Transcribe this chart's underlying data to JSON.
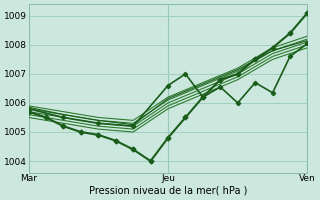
{
  "title": "",
  "xlabel": "Pression niveau de la mer( hPa )",
  "bg_color": "#cce8de",
  "grid_color": "#99ccbb",
  "line_color1": "#1a5c1a",
  "line_color2": "#2d7a2d",
  "ylim": [
    1003.6,
    1009.4
  ],
  "xlim": [
    0,
    48
  ],
  "xticks": [
    0,
    24,
    48
  ],
  "xticklabels": [
    "Mar",
    "Jeu",
    "Ven"
  ],
  "yticks": [
    1004,
    1005,
    1006,
    1007,
    1008,
    1009
  ],
  "lines": [
    {
      "x": [
        0,
        3,
        6,
        9,
        12,
        15,
        18,
        21,
        24,
        27,
        30,
        33,
        36,
        39,
        42,
        45,
        48
      ],
      "y": [
        1005.7,
        1005.5,
        1005.2,
        1005.0,
        1004.9,
        1004.7,
        1004.4,
        1004.0,
        1004.8,
        1005.5,
        1006.2,
        1006.8,
        1007.0,
        1007.5,
        1007.9,
        1008.4,
        1009.1
      ],
      "lw": 1.5,
      "marker": "D",
      "ms": 2.5,
      "color": "#1a5c1a"
    },
    {
      "x": [
        0,
        6,
        12,
        18,
        24,
        30,
        36,
        42,
        48
      ],
      "y": [
        1005.9,
        1005.7,
        1005.5,
        1005.4,
        1006.2,
        1006.7,
        1007.2,
        1007.9,
        1008.3
      ],
      "lw": 0.8,
      "marker": null,
      "ms": 0,
      "color": "#2d7a2d"
    },
    {
      "x": [
        0,
        6,
        12,
        18,
        24,
        30,
        36,
        42,
        48
      ],
      "y": [
        1005.8,
        1005.6,
        1005.4,
        1005.3,
        1006.1,
        1006.6,
        1007.1,
        1007.8,
        1008.2
      ],
      "lw": 0.8,
      "marker": null,
      "ms": 0,
      "color": "#2d7a2d"
    },
    {
      "x": [
        0,
        6,
        12,
        18,
        24,
        30,
        36,
        42,
        48
      ],
      "y": [
        1005.7,
        1005.5,
        1005.3,
        1005.2,
        1006.0,
        1006.5,
        1007.0,
        1007.7,
        1008.1
      ],
      "lw": 0.8,
      "marker": null,
      "ms": 0,
      "color": "#2d7a2d"
    },
    {
      "x": [
        0,
        6,
        12,
        18,
        24,
        30,
        36,
        42,
        48
      ],
      "y": [
        1005.6,
        1005.4,
        1005.2,
        1005.1,
        1005.9,
        1006.4,
        1006.9,
        1007.6,
        1008.0
      ],
      "lw": 0.8,
      "marker": null,
      "ms": 0,
      "color": "#2d7a2d"
    },
    {
      "x": [
        0,
        6,
        12,
        18,
        24,
        30,
        36,
        42,
        48
      ],
      "y": [
        1005.5,
        1005.3,
        1005.1,
        1005.0,
        1005.8,
        1006.3,
        1006.8,
        1007.5,
        1007.9
      ],
      "lw": 0.8,
      "marker": null,
      "ms": 0,
      "color": "#2d7a2d"
    },
    {
      "x": [
        0,
        6,
        12,
        18,
        24,
        27,
        30,
        33,
        36,
        39,
        42,
        45,
        48
      ],
      "y": [
        1005.8,
        1005.5,
        1005.3,
        1005.2,
        1006.6,
        1007.0,
        1006.2,
        1006.55,
        1006.0,
        1006.7,
        1006.35,
        1007.6,
        1008.05
      ],
      "lw": 1.2,
      "marker": "D",
      "ms": 2.2,
      "color": "#1a5c1a"
    },
    {
      "x": [
        0,
        6,
        12,
        18,
        24,
        30,
        36,
        42,
        48
      ],
      "y": [
        1005.85,
        1005.6,
        1005.4,
        1005.25,
        1006.15,
        1006.65,
        1007.15,
        1007.8,
        1008.15
      ],
      "lw": 0.8,
      "marker": null,
      "ms": 0,
      "color": "#1a5c1a"
    }
  ]
}
